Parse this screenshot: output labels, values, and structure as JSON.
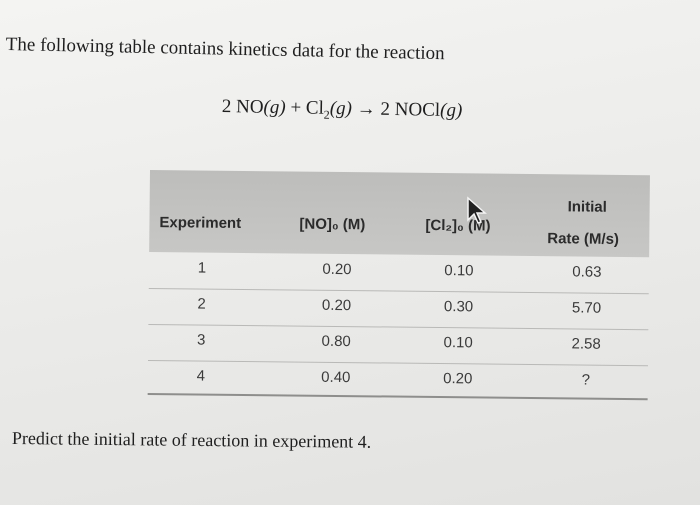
{
  "intro_text": "The following table contains kinetics data for the reaction",
  "reaction": {
    "coef_1": "2",
    "species_1": "NO",
    "phase_1": "(g)",
    "plus": "+",
    "species_2": "Cl",
    "sub_2": "2",
    "phase_2": "(g)",
    "arrow": "→",
    "coef_3": "2",
    "species_3": "NOCl",
    "phase_3": "(g)"
  },
  "table": {
    "headers": {
      "experiment": "Experiment",
      "no_conc": "[NO]₀ (M)",
      "cl2_conc": "[Cl₂]₀ (M)",
      "rate_line1": "Initial",
      "rate_line2": "Rate (M/s)"
    },
    "rows": [
      {
        "experiment": "1",
        "no": "0.20",
        "cl2": "0.10",
        "rate": "0.63"
      },
      {
        "experiment": "2",
        "no": "0.20",
        "cl2": "0.30",
        "rate": "5.70"
      },
      {
        "experiment": "3",
        "no": "0.80",
        "cl2": "0.10",
        "rate": "2.58"
      },
      {
        "experiment": "4",
        "no": "0.40",
        "cl2": "0.20",
        "rate": "?"
      }
    ]
  },
  "question": "Predict the initial rate of reaction in experiment 4.",
  "cursor_icon": "arrow-pointer-icon"
}
